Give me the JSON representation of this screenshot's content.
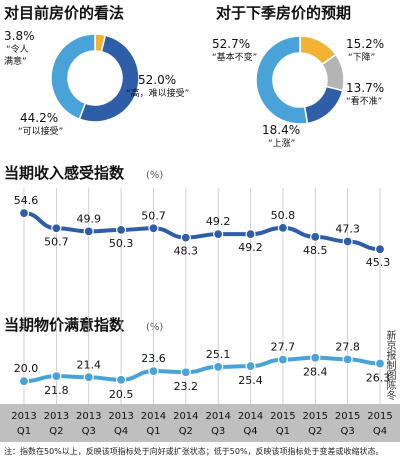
{
  "chart_data": [
    {
      "type": "pie",
      "title": "对目前房价的看法",
      "slices": [
        {
          "label": "“令人满意”",
          "value": 3.8,
          "color": "#f2b233"
        },
        {
          "label": "“高，难以接受”",
          "value": 52.0,
          "color": "#2f5ea8"
        },
        {
          "label": "“可以接受”",
          "value": 44.2,
          "color": "#4aa3d8"
        }
      ]
    },
    {
      "type": "pie",
      "title": "对于下季房价的预期",
      "slices": [
        {
          "label": "“下降”",
          "value": 15.2,
          "color": "#f2b233"
        },
        {
          "label": "“看不准”",
          "value": 13.7,
          "color": "#b4b4b4"
        },
        {
          "label": "“上涨”",
          "value": 18.4,
          "color": "#2f5ea8"
        },
        {
          "label": "“基本不变”",
          "value": 52.7,
          "color": "#4aa3d8"
        }
      ]
    },
    {
      "type": "line",
      "title": "当期收入感受指数",
      "unit": "(%)",
      "categories": [
        "2013 Q1",
        "2013 Q2",
        "2013 Q3",
        "2013 Q4",
        "2014 Q1",
        "2014 Q2",
        "2014 Q3",
        "2014 Q4",
        "2015 Q1",
        "2015 Q2",
        "2015 Q3",
        "2015 Q4"
      ],
      "values": [
        54.6,
        50.7,
        49.9,
        50.3,
        50.7,
        48.3,
        49.2,
        49.2,
        50.8,
        48.5,
        47.3,
        45.3
      ],
      "ylim": [
        42,
        58
      ],
      "grid": "vertical",
      "color": "#2f5ea8"
    },
    {
      "type": "line",
      "title": "当期物价满意指数",
      "unit": "(%)",
      "categories": [
        "2013 Q1",
        "2013 Q2",
        "2013 Q3",
        "2013 Q4",
        "2014 Q1",
        "2014 Q2",
        "2014 Q3",
        "2014 Q4",
        "2015 Q1",
        "2015 Q2",
        "2015 Q3",
        "2015 Q4"
      ],
      "values": [
        20.0,
        21.8,
        21.4,
        20.5,
        23.6,
        23.2,
        25.1,
        25.4,
        27.7,
        28.4,
        27.8,
        26.3
      ],
      "ylim": [
        14,
        34
      ],
      "grid": "vertical",
      "color": "#4aa3d8"
    }
  ],
  "x_ticks": [
    {
      "year": "2013",
      "q": "Q1"
    },
    {
      "year": "2013",
      "q": "Q2"
    },
    {
      "year": "2013",
      "q": "Q3"
    },
    {
      "year": "2013",
      "q": "Q4"
    },
    {
      "year": "2014",
      "q": "Q1"
    },
    {
      "year": "2014",
      "q": "Q2"
    },
    {
      "year": "2014",
      "q": "Q3"
    },
    {
      "year": "2014",
      "q": "Q4"
    },
    {
      "year": "2015",
      "q": "Q1"
    },
    {
      "year": "2015",
      "q": "Q2"
    },
    {
      "year": "2015",
      "q": "Q3"
    },
    {
      "year": "2015",
      "q": "Q4"
    }
  ],
  "credit": "新京报制图陈冬",
  "footnote": "注：指数在50%以上，反映该项指标处于向好或扩张状态；低于50%，反映该项指标处于变差或收缩状态。"
}
